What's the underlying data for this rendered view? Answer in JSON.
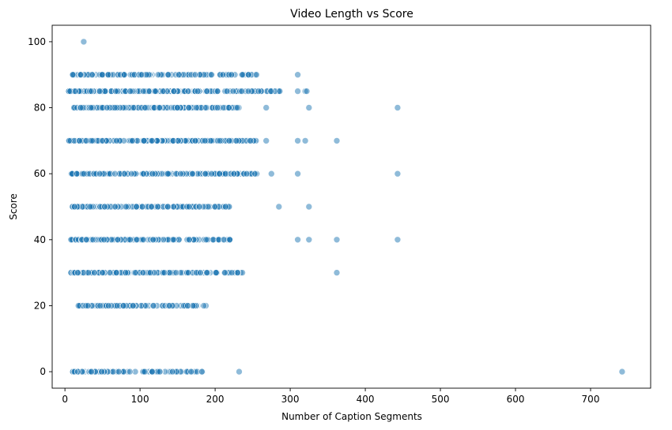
{
  "chart_data": {
    "type": "scatter",
    "title": "Video Length vs Score",
    "xlabel": "Number of Caption Segments",
    "ylabel": "Score",
    "xlim": [
      -17,
      780
    ],
    "ylim": [
      -5,
      105
    ],
    "xticks": [
      0,
      100,
      200,
      300,
      400,
      500,
      600,
      700
    ],
    "yticks": [
      0,
      20,
      40,
      60,
      80,
      100
    ],
    "grid": false,
    "marker_color": "#1f77b4",
    "marker_alpha": 0.5,
    "bands": [
      {
        "score": 100,
        "x_min": 25,
        "x_max": 25,
        "count": 1
      },
      {
        "score": 90,
        "x_min": 10,
        "x_max": 258,
        "count": 150,
        "extra_x": [
          310
        ]
      },
      {
        "score": 85,
        "x_min": 5,
        "x_max": 288,
        "count": 200,
        "extra_x": [
          310,
          320,
          322
        ]
      },
      {
        "score": 80,
        "x_min": 12,
        "x_max": 232,
        "count": 200,
        "extra_x": [
          268,
          325,
          443
        ]
      },
      {
        "score": 70,
        "x_min": 5,
        "x_max": 258,
        "count": 230,
        "extra_x": [
          268,
          310,
          320,
          362
        ]
      },
      {
        "score": 60,
        "x_min": 8,
        "x_max": 258,
        "count": 220,
        "extra_x": [
          275,
          310,
          443
        ]
      },
      {
        "score": 50,
        "x_min": 10,
        "x_max": 222,
        "count": 160,
        "extra_x": [
          285,
          325
        ]
      },
      {
        "score": 40,
        "x_min": 8,
        "x_max": 222,
        "count": 150,
        "extra_x": [
          310,
          325,
          362,
          443
        ]
      },
      {
        "score": 30,
        "x_min": 8,
        "x_max": 238,
        "count": 160,
        "extra_x": [
          362
        ]
      },
      {
        "score": 20,
        "x_min": 18,
        "x_max": 188,
        "count": 90
      },
      {
        "score": 0,
        "x_min": 10,
        "x_max": 185,
        "count": 90,
        "extra_x": [
          232,
          742
        ]
      }
    ]
  }
}
